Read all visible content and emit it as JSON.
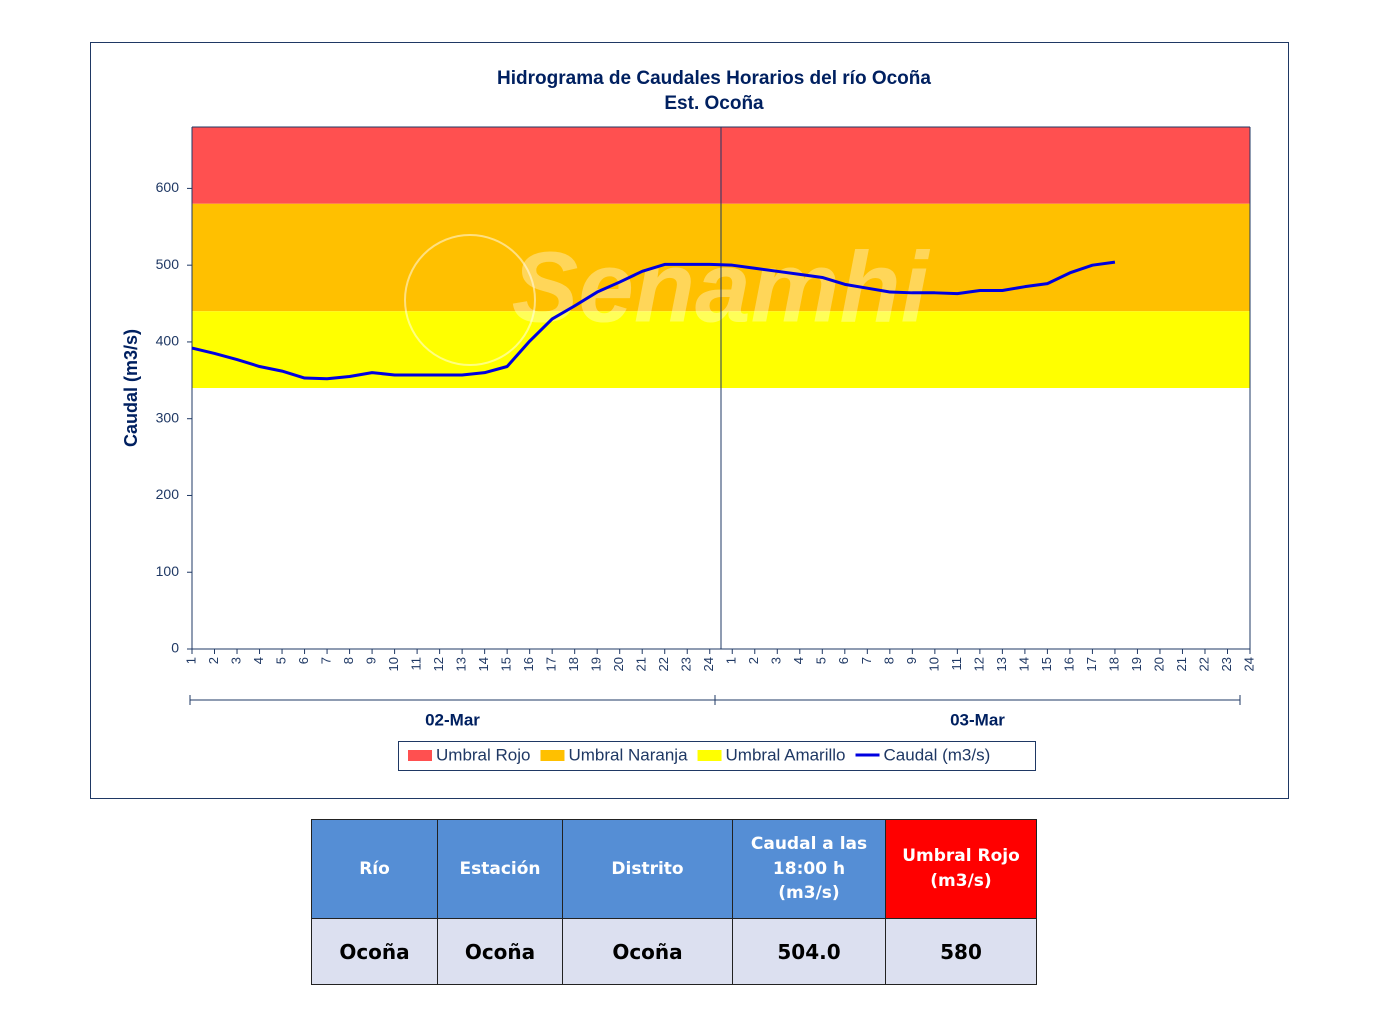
{
  "chart_data": {
    "type": "line",
    "title": "Hidrograma  de Caudales Horarios  del río Ocoña",
    "subtitle": "Est. Ocoña",
    "y_label": "Caudal  (m3/s)",
    "watermark": "Senamhi",
    "categories": [
      "1",
      "2",
      "3",
      "4",
      "5",
      "6",
      "7",
      "8",
      "9",
      "10",
      "11",
      "12",
      "13",
      "14",
      "15",
      "16",
      "17",
      "18",
      "19",
      "20",
      "21",
      "22",
      "23",
      "24",
      "1",
      "2",
      "3",
      "4",
      "5",
      "6",
      "7",
      "8",
      "9",
      "10",
      "11",
      "12",
      "13",
      "14",
      "15",
      "16",
      "17",
      "18",
      "19",
      "20",
      "21",
      "22",
      "23",
      "24"
    ],
    "x_groups": [
      "02-Mar",
      "03-Mar"
    ],
    "ylim": [
      0,
      680
    ],
    "yticks": [
      0,
      100,
      200,
      300,
      400,
      500,
      600
    ],
    "grid": false,
    "thresholds": [
      {
        "name": "Umbral Rojo",
        "color": "#ff5050",
        "value": 580
      },
      {
        "name": "Umbral Naranja",
        "color": "#ffc000",
        "value": 440
      },
      {
        "name": "Umbral Amarillo",
        "color": "#ffff00",
        "value": 340
      }
    ],
    "series": [
      {
        "name": "Caudal (m3/s)",
        "color": "#0000e0",
        "values": [
          392,
          385,
          377,
          368,
          362,
          353,
          352,
          355,
          360,
          357,
          357,
          357,
          357,
          360,
          368,
          401,
          430,
          447,
          465,
          478,
          492,
          501,
          501,
          501,
          500,
          496,
          492,
          488,
          484,
          475,
          470,
          465,
          464,
          464,
          463,
          467,
          467,
          472,
          476,
          490,
          500,
          504,
          null,
          null,
          null,
          null,
          null,
          null
        ]
      }
    ]
  },
  "table": {
    "header": [
      "Río",
      "Estación",
      "Distrito",
      "Caudal a las 18:00 h (m3/s)",
      "Umbral Rojo (m3/s)"
    ],
    "rows": [
      [
        "Ocoña",
        "Ocoña",
        "Ocoña",
        "504.0",
        "580"
      ]
    ]
  }
}
